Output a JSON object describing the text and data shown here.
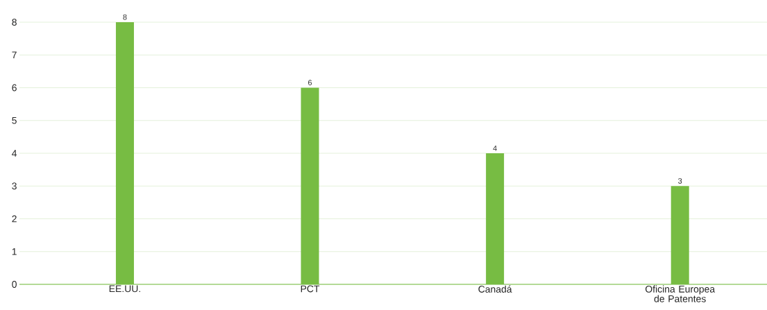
{
  "chart_data": {
    "type": "bar",
    "categories": [
      "EE.UU.",
      "PCT",
      "Canadá",
      "Oficina Europea de Patentes"
    ],
    "values": [
      8,
      6,
      4,
      3
    ],
    "color": "#77bc43",
    "ylim": [
      0,
      8
    ],
    "yticks": [
      0,
      1,
      2,
      3,
      4,
      5,
      6,
      7,
      8
    ],
    "grid": "y",
    "data_labels": true
  }
}
